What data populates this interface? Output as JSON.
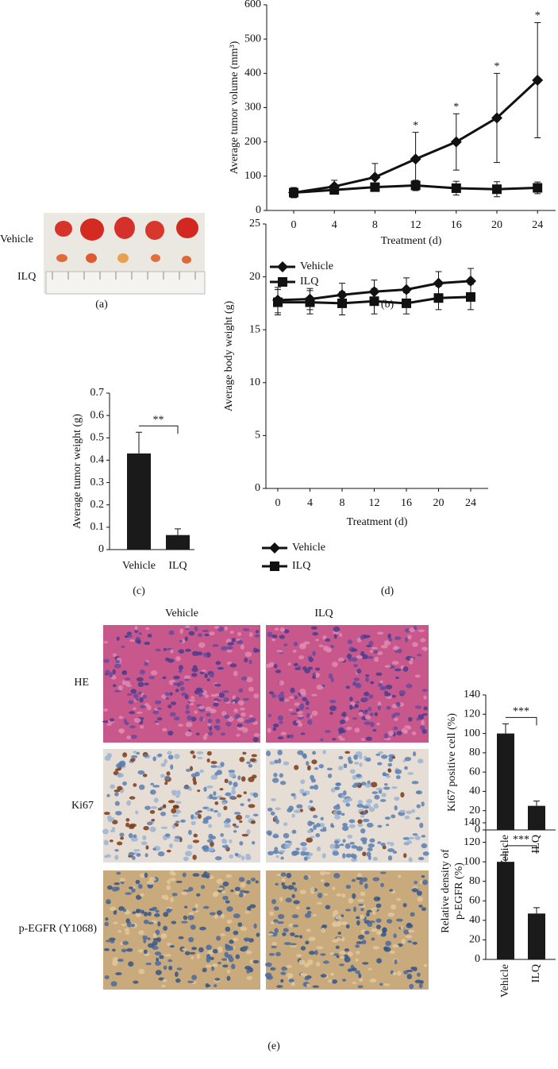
{
  "chart_data": [
    {
      "type": "line",
      "y_label": "Average tumor volume (mm³)",
      "x_label": "Treatment (d)",
      "categories": [
        "0",
        "4",
        "8",
        "12",
        "16",
        "20",
        "24"
      ],
      "ylim": [
        0,
        600
      ],
      "yticks": [
        0,
        100,
        200,
        300,
        400,
        500,
        600
      ],
      "series": [
        {
          "name": "Vehicle",
          "color": "#111111",
          "marker": "diamond",
          "values": [
            52,
            70,
            97,
            150,
            200,
            270,
            380
          ],
          "errors": [
            15,
            18,
            40,
            78,
            82,
            130,
            168
          ]
        },
        {
          "name": "ILQ",
          "color": "#111111",
          "marker": "square",
          "values": [
            52,
            60,
            68,
            73,
            65,
            62,
            66
          ],
          "errors": [
            12,
            10,
            10,
            15,
            20,
            22,
            17
          ]
        }
      ],
      "significance": [
        {
          "text": "*",
          "x": "12"
        },
        {
          "text": "*",
          "x": "16"
        },
        {
          "text": "*",
          "x": "20"
        },
        {
          "text": "*",
          "x": "24"
        }
      ],
      "panel_label": "(b)"
    },
    {
      "type": "bar",
      "y_label": "Average tumor weight (g)",
      "categories": [
        "Vehicle",
        "ILQ"
      ],
      "values": [
        0.43,
        0.065
      ],
      "errors": [
        0.095,
        0.028
      ],
      "color": "#1a1a1a",
      "ylim": [
        0,
        0.7
      ],
      "yticks": [
        0,
        0.1,
        0.2,
        0.3,
        0.4,
        0.5,
        0.6,
        0.7
      ],
      "significance": {
        "text": "**",
        "between": [
          "Vehicle",
          "ILQ"
        ]
      },
      "rotate_labels": false,
      "panel_label": "(c)"
    },
    {
      "type": "line",
      "y_label": "Average body weight (g)",
      "x_label": "Treatment (d)",
      "categories": [
        "0",
        "4",
        "8",
        "12",
        "16",
        "20",
        "24"
      ],
      "ylim": [
        0,
        25
      ],
      "yticks": [
        0,
        5,
        10,
        15,
        20,
        25
      ],
      "series": [
        {
          "name": "Vehicle",
          "color": "#111111",
          "marker": "diamond",
          "values": [
            17.8,
            17.9,
            18.3,
            18.6,
            18.8,
            19.4,
            19.6
          ],
          "errors": [
            1.2,
            1.0,
            1.1,
            1.1,
            1.1,
            1.1,
            1.2
          ]
        },
        {
          "name": "ILQ",
          "color": "#111111",
          "marker": "square",
          "values": [
            17.6,
            17.6,
            17.5,
            17.7,
            17.5,
            18.0,
            18.1
          ],
          "errors": [
            1.2,
            1.1,
            1.1,
            1.2,
            1.0,
            1.1,
            1.2
          ]
        }
      ],
      "panel_label": "(d)"
    },
    {
      "type": "bar",
      "y_label": [
        "Ki67 positive cell (%)"
      ],
      "categories": [
        "Vehicle",
        "ILQ"
      ],
      "values": [
        100,
        25
      ],
      "errors": [
        10,
        5
      ],
      "color": "#1a1a1a",
      "ylim": [
        0,
        140
      ],
      "yticks": [
        0,
        20,
        40,
        60,
        80,
        100,
        120,
        140
      ],
      "significance": {
        "text": "***",
        "between": [
          "Vehicle",
          "ILQ"
        ]
      },
      "rotate_labels": true
    },
    {
      "type": "bar",
      "y_label": [
        "Relative density of",
        "p-EGFR (%)"
      ],
      "categories": [
        "Vehicle",
        "ILQ"
      ],
      "values": [
        100,
        47
      ],
      "errors": [
        10,
        6
      ],
      "color": "#1a1a1a",
      "ylim": [
        0,
        140
      ],
      "yticks": [
        0,
        20,
        40,
        60,
        80,
        100,
        120,
        140
      ],
      "significance": {
        "text": "***",
        "between": [
          "Vehicle",
          "ILQ"
        ]
      },
      "rotate_labels": true
    }
  ],
  "photo": {
    "row_labels": [
      "Vehicle",
      "ILQ"
    ],
    "panel_label": "(a)"
  },
  "histology": {
    "column_labels": [
      "Vehicle",
      "ILQ"
    ],
    "row_labels": [
      "HE",
      "Ki67",
      "p-EGFR (Y1068)"
    ],
    "panel_label": "(e)"
  }
}
